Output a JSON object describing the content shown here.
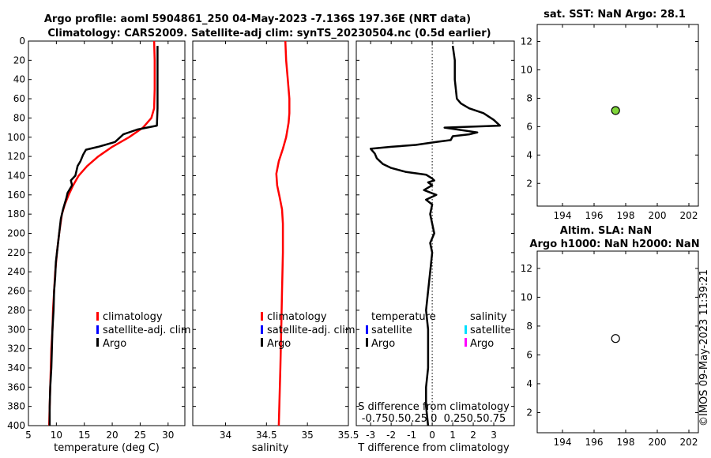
{
  "titles": {
    "main_line1": "Argo profile: aoml 5904861_250 04-May-2023 -7.136S 197.36E (NRT data)",
    "main_line2": "Climatology: CARS2009. Satellite-adj clim: synTS_20230504.nc (0.5d earlier)",
    "sst_title": "sat. SST: NaN Argo: 28.1",
    "sla_title1": "Altim. SLA: NaN",
    "sla_title2": "Argo h1000: NaN h2000: NaN"
  },
  "watermark": "©IMOS 09-May-2023 11:39:21",
  "colors": {
    "climatology": "#ff0000",
    "satellite": "#0000ff",
    "argo": "#000000",
    "sat_salinity": "#00e0ff",
    "argo_salinity": "#ff00ff",
    "sst_marker": "#7fd63a"
  },
  "chart_data": [
    {
      "type": "line",
      "id": "temperature",
      "xlabel": "temperature (deg C)",
      "ylabel": "",
      "xlim": [
        5,
        33
      ],
      "ylim": [
        400,
        0
      ],
      "xticks": [
        5,
        10,
        15,
        20,
        25,
        30
      ],
      "yticks": [
        0,
        20,
        40,
        60,
        80,
        100,
        120,
        140,
        160,
        180,
        200,
        220,
        240,
        260,
        280,
        300,
        320,
        340,
        360,
        380,
        400
      ],
      "legend": [
        "climatology",
        "satellite-adj. clim",
        "Argo"
      ],
      "series": [
        {
          "name": "climatology",
          "color": "#ff0000",
          "points": [
            [
              27.5,
              0
            ],
            [
              27.6,
              20
            ],
            [
              27.6,
              50
            ],
            [
              27.5,
              70
            ],
            [
              27.0,
              80
            ],
            [
              25.5,
              90
            ],
            [
              23.0,
              100
            ],
            [
              20.0,
              110
            ],
            [
              17.5,
              120
            ],
            [
              15.5,
              130
            ],
            [
              14.0,
              140
            ],
            [
              13.0,
              150
            ],
            [
              12.2,
              160
            ],
            [
              11.5,
              170
            ],
            [
              11.0,
              180
            ],
            [
              10.5,
              200
            ],
            [
              10.1,
              220
            ],
            [
              9.8,
              240
            ],
            [
              9.6,
              260
            ],
            [
              9.4,
              280
            ],
            [
              9.3,
              300
            ],
            [
              9.1,
              320
            ],
            [
              9.0,
              340
            ],
            [
              8.9,
              360
            ],
            [
              8.8,
              380
            ],
            [
              8.7,
              400
            ]
          ]
        },
        {
          "name": "Argo",
          "color": "#000000",
          "points": [
            [
              28.1,
              5
            ],
            [
              28.1,
              20
            ],
            [
              28.1,
              50
            ],
            [
              28.1,
              70
            ],
            [
              28.0,
              88
            ],
            [
              24.5,
              92
            ],
            [
              22.0,
              97
            ],
            [
              20.5,
              105
            ],
            [
              17.5,
              110
            ],
            [
              15.3,
              113
            ],
            [
              14.8,
              118
            ],
            [
              14.3,
              125
            ],
            [
              13.8,
              130
            ],
            [
              13.4,
              140
            ],
            [
              12.6,
              145
            ],
            [
              12.8,
              150
            ],
            [
              12.0,
              158
            ],
            [
              11.8,
              163
            ],
            [
              11.2,
              175
            ],
            [
              10.8,
              185
            ],
            [
              10.5,
              200
            ],
            [
              10.2,
              215
            ],
            [
              9.9,
              230
            ],
            [
              9.8,
              245
            ],
            [
              9.6,
              260
            ],
            [
              9.5,
              280
            ],
            [
              9.3,
              300
            ],
            [
              9.2,
              320
            ],
            [
              9.1,
              340
            ],
            [
              8.9,
              360
            ],
            [
              8.8,
              380
            ],
            [
              8.8,
              400
            ]
          ]
        }
      ]
    },
    {
      "type": "line",
      "id": "salinity",
      "xlabel": "salinity",
      "ylabel": "",
      "xlim": [
        33.6,
        35.5
      ],
      "ylim": [
        400,
        0
      ],
      "xticks": [
        34,
        34.5,
        35,
        35.5
      ],
      "legend": [
        "climatology",
        "satellite-adj. clim",
        "Argo"
      ],
      "series": [
        {
          "name": "climatology",
          "color": "#ff0000",
          "points": [
            [
              34.73,
              0
            ],
            [
              34.74,
              20
            ],
            [
              34.76,
              40
            ],
            [
              34.78,
              60
            ],
            [
              34.78,
              75
            ],
            [
              34.77,
              85
            ],
            [
              34.74,
              100
            ],
            [
              34.7,
              112
            ],
            [
              34.65,
              125
            ],
            [
              34.62,
              138
            ],
            [
              34.63,
              150
            ],
            [
              34.66,
              162
            ],
            [
              34.69,
              175
            ],
            [
              34.7,
              190
            ],
            [
              34.7,
              220
            ],
            [
              34.69,
              260
            ],
            [
              34.68,
              300
            ],
            [
              34.67,
              340
            ],
            [
              34.66,
              370
            ],
            [
              34.65,
              400
            ]
          ]
        }
      ]
    },
    {
      "type": "line",
      "id": "difference",
      "xlabel": "T difference from climatology",
      "xlabel_s": "S difference from climatology",
      "s_tick_labels": "-0.750.50.25 0  0.250.50.75",
      "ylabel": "",
      "xlim": [
        -3.7,
        4.0
      ],
      "ylim": [
        400,
        0
      ],
      "xticks": [
        -3,
        -2,
        -1,
        0,
        1,
        2,
        3
      ],
      "xtick_labels": [
        "-3",
        "-2",
        "-1",
        "0",
        "1",
        "2",
        "3"
      ],
      "legend_temperature_title": "temperature",
      "legend_salinity_title": "salinity",
      "legend_items": [
        "satellite",
        "Argo",
        "satellite",
        "Argo"
      ],
      "series": [
        {
          "name": "Argo T diff",
          "color": "#000000",
          "points": [
            [
              1.0,
              5
            ],
            [
              1.1,
              20
            ],
            [
              1.1,
              40
            ],
            [
              1.2,
              60
            ],
            [
              1.4,
              65
            ],
            [
              1.8,
              70
            ],
            [
              2.5,
              75
            ],
            [
              3.0,
              82
            ],
            [
              3.3,
              88
            ],
            [
              0.6,
              90
            ],
            [
              2.2,
              95
            ],
            [
              1.8,
              97
            ],
            [
              1.0,
              99
            ],
            [
              0.9,
              103
            ],
            [
              0.2,
              105
            ],
            [
              -0.8,
              108
            ],
            [
              -2.0,
              110
            ],
            [
              -3.0,
              112
            ],
            [
              -2.8,
              117
            ],
            [
              -2.7,
              122
            ],
            [
              -2.4,
              128
            ],
            [
              -2.0,
              132
            ],
            [
              -1.3,
              136
            ],
            [
              -0.3,
              139
            ],
            [
              0.0,
              143
            ],
            [
              0.1,
              145
            ],
            [
              -0.2,
              147
            ],
            [
              0.0,
              150
            ],
            [
              -0.4,
              155
            ],
            [
              0.2,
              160
            ],
            [
              -0.3,
              165
            ],
            [
              0.0,
              170
            ],
            [
              -0.1,
              180
            ],
            [
              0.0,
              190
            ],
            [
              0.1,
              200
            ],
            [
              -0.1,
              210
            ],
            [
              0.0,
              220
            ],
            [
              -0.1,
              240
            ],
            [
              -0.2,
              260
            ],
            [
              -0.3,
              280
            ],
            [
              -0.2,
              300
            ],
            [
              -0.2,
              320
            ],
            [
              -0.2,
              340
            ],
            [
              -0.3,
              360
            ],
            [
              -0.3,
              380
            ],
            [
              -0.2,
              400
            ]
          ]
        }
      ]
    },
    {
      "type": "scatter",
      "id": "sst",
      "title": "sat. SST: NaN Argo: 28.1",
      "xlim": [
        192.4,
        202.6
      ],
      "ylim": [
        0.4,
        13.2
      ],
      "xticks": [
        194,
        196,
        198,
        200,
        202
      ],
      "yticks": [
        2,
        4,
        6,
        8,
        10,
        12
      ],
      "points": [
        {
          "x": 197.36,
          "y": 7.136
        }
      ]
    },
    {
      "type": "scatter",
      "id": "sla",
      "title": "Altim. SLA: NaN",
      "xlim": [
        192.4,
        202.6
      ],
      "ylim": [
        0.6,
        13.2
      ],
      "xticks": [
        194,
        196,
        198,
        200,
        202
      ],
      "yticks": [
        2,
        4,
        6,
        8,
        10,
        12
      ],
      "points": [
        {
          "x": 197.36,
          "y": 7.136
        }
      ]
    }
  ]
}
